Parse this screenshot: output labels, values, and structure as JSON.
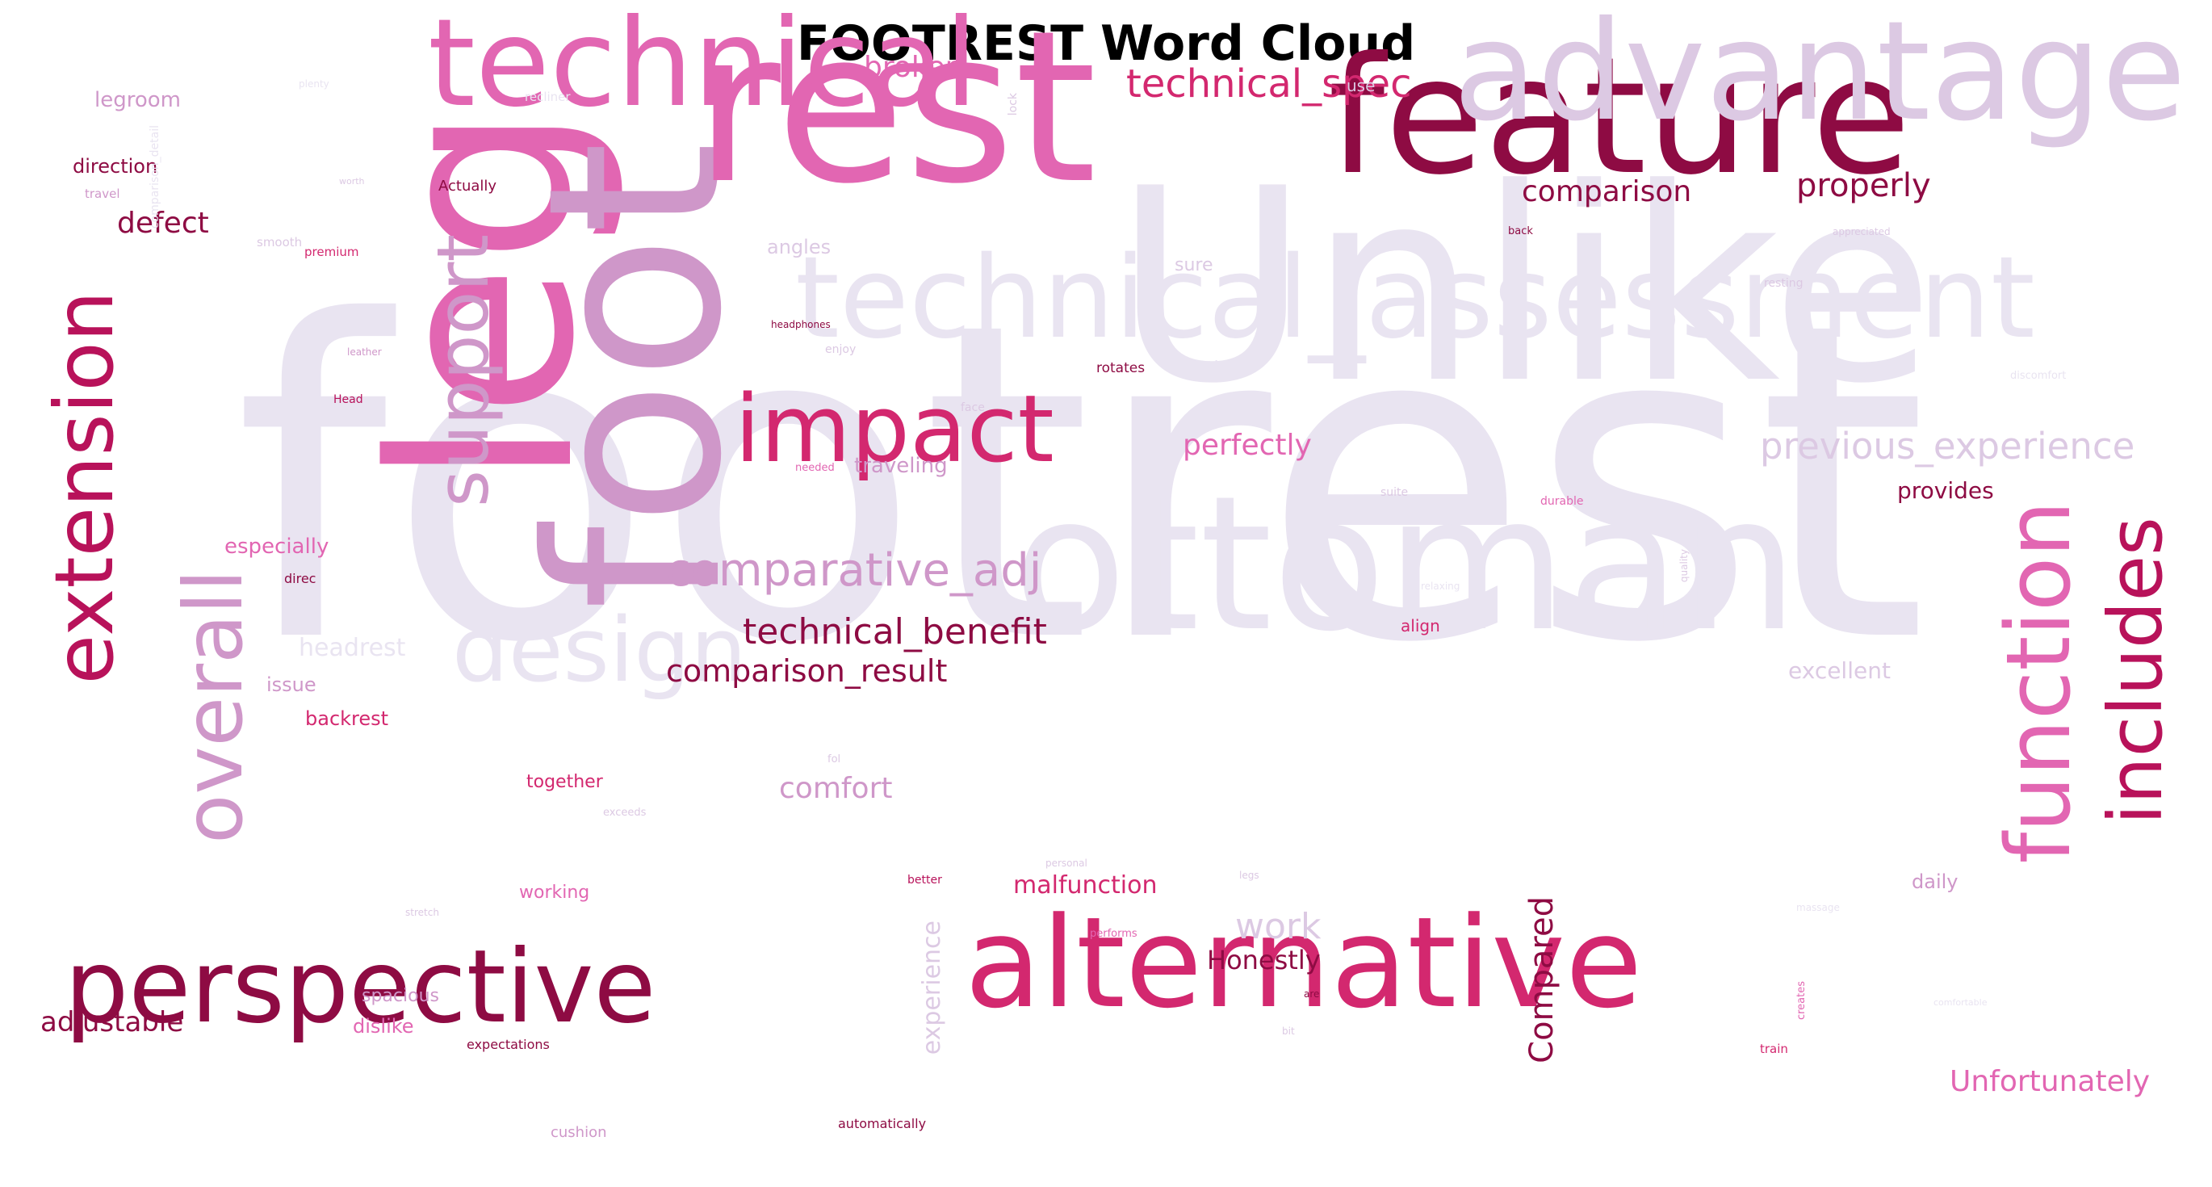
{
  "title": "FOOTREST Word Cloud",
  "colors": {
    "lavender": "#e9e4f1",
    "lavender_mid": "#dcc9e3",
    "orchid": "#cf97c9",
    "pink": "#e266b2",
    "magenta": "#d3286f",
    "crimson": "#b8125a",
    "maroon": "#8e0b43",
    "deep": "#7a0037"
  },
  "words": [
    {
      "text": "footrest",
      "color": "lavender"
    },
    {
      "text": "Unlike",
      "color": "lavender"
    },
    {
      "text": "ottoman",
      "color": "lavender"
    },
    {
      "text": "leg",
      "color": "pink"
    },
    {
      "text": "foot",
      "color": "orchid"
    },
    {
      "text": "rest",
      "color": "pink"
    },
    {
      "text": "feature",
      "color": "maroon"
    },
    {
      "text": "advantage",
      "color": "lavender_mid"
    },
    {
      "text": "technical",
      "color": "pink"
    },
    {
      "text": "technical_assessment",
      "color": "lavender"
    },
    {
      "text": "alternative",
      "color": "magenta"
    },
    {
      "text": "perspective",
      "color": "maroon"
    },
    {
      "text": "impact",
      "color": "magenta"
    },
    {
      "text": "extension",
      "color": "crimson"
    },
    {
      "text": "overall",
      "color": "orchid"
    },
    {
      "text": "support",
      "color": "orchid"
    },
    {
      "text": "design",
      "color": "lavender"
    },
    {
      "text": "function",
      "color": "pink"
    },
    {
      "text": "includes",
      "color": "crimson"
    },
    {
      "text": "technical_spec",
      "color": "magenta"
    },
    {
      "text": "comparative_adj",
      "color": "orchid"
    },
    {
      "text": "technical_benefit",
      "color": "maroon"
    },
    {
      "text": "comparison_result",
      "color": "maroon"
    },
    {
      "text": "previous_experience",
      "color": "lavender_mid"
    },
    {
      "text": "comparison",
      "color": "maroon"
    },
    {
      "text": "properly",
      "color": "maroon"
    },
    {
      "text": "broken",
      "color": "pink"
    },
    {
      "text": "perfectly",
      "color": "pink"
    },
    {
      "text": "defect",
      "color": "maroon"
    },
    {
      "text": "comfort",
      "color": "orchid"
    },
    {
      "text": "work",
      "color": "lavender_mid"
    },
    {
      "text": "Compared",
      "color": "maroon"
    },
    {
      "text": "Honestly",
      "color": "maroon"
    },
    {
      "text": "malfunction",
      "color": "magenta"
    },
    {
      "text": "Unfortunately",
      "color": "pink"
    },
    {
      "text": "adjustable",
      "color": "maroon"
    },
    {
      "text": "experience",
      "color": "lavender_mid"
    },
    {
      "text": "especially",
      "color": "pink"
    },
    {
      "text": "traveling",
      "color": "orchid"
    },
    {
      "text": "provides",
      "color": "maroon"
    },
    {
      "text": "excellent",
      "color": "lavender_mid"
    },
    {
      "text": "headrest",
      "color": "lavender"
    },
    {
      "text": "issue",
      "color": "orchid"
    },
    {
      "text": "backrest",
      "color": "magenta"
    },
    {
      "text": "together",
      "color": "magenta"
    },
    {
      "text": "legroom",
      "color": "orchid"
    },
    {
      "text": "direction",
      "color": "maroon"
    },
    {
      "text": "angles",
      "color": "lavender_mid"
    },
    {
      "text": "daily",
      "color": "orchid"
    },
    {
      "text": "spacious",
      "color": "orchid"
    },
    {
      "text": "dislike",
      "color": "pink"
    },
    {
      "text": "working",
      "color": "pink"
    },
    {
      "text": "sure",
      "color": "lavender_mid"
    },
    {
      "text": "think",
      "color": "lavender"
    },
    {
      "text": "Actually",
      "color": "maroon"
    },
    {
      "text": "align",
      "color": "magenta"
    },
    {
      "text": "use",
      "color": "lavender_mid"
    },
    {
      "text": "cushion",
      "color": "orchid"
    },
    {
      "text": "rotates",
      "color": "maroon"
    },
    {
      "text": "automatically",
      "color": "maroon"
    },
    {
      "text": "expectations",
      "color": "maroon"
    },
    {
      "text": "premium",
      "color": "magenta"
    },
    {
      "text": "smooth",
      "color": "lavender_mid"
    },
    {
      "text": "direc",
      "color": "maroon"
    },
    {
      "text": "travel",
      "color": "orchid"
    },
    {
      "text": "recliner",
      "color": "lavender"
    },
    {
      "text": "comparison_detail",
      "color": "lavender"
    },
    {
      "text": "enjoy",
      "color": "lavender_mid"
    },
    {
      "text": "headphones",
      "color": "maroon"
    },
    {
      "text": "leather",
      "color": "orchid"
    },
    {
      "text": "Head",
      "color": "crimson"
    },
    {
      "text": "face",
      "color": "lavender_mid"
    },
    {
      "text": "needed",
      "color": "pink"
    },
    {
      "text": "back",
      "color": "maroon"
    },
    {
      "text": "resting",
      "color": "lavender_mid"
    },
    {
      "text": "appreciated",
      "color": "lavender_mid"
    },
    {
      "text": "discomfort",
      "color": "lavender"
    },
    {
      "text": "suite",
      "color": "lavender_mid"
    },
    {
      "text": "durable",
      "color": "pink"
    },
    {
      "text": "quality",
      "color": "lavender_mid"
    },
    {
      "text": "relaxing",
      "color": "lavender"
    },
    {
      "text": "fol",
      "color": "lavender_mid"
    },
    {
      "text": "exceeds",
      "color": "lavender_mid"
    },
    {
      "text": "personal",
      "color": "lavender_mid"
    },
    {
      "text": "better",
      "color": "crimson"
    },
    {
      "text": "performs",
      "color": "pink"
    },
    {
      "text": "stretch",
      "color": "lavender_mid"
    },
    {
      "text": "are",
      "color": "maroon"
    },
    {
      "text": "bit",
      "color": "lavender_mid"
    },
    {
      "text": "train",
      "color": "magenta"
    },
    {
      "text": "creates",
      "color": "pink"
    },
    {
      "text": "massage",
      "color": "lavender"
    },
    {
      "text": "comfortable",
      "color": "lavender"
    },
    {
      "text": "plenty",
      "color": "lavender"
    },
    {
      "text": "worth",
      "color": "lavender_mid"
    },
    {
      "text": "lock",
      "color": "lavender_mid"
    },
    {
      "text": "legs",
      "color": "lavender_mid"
    }
  ]
}
